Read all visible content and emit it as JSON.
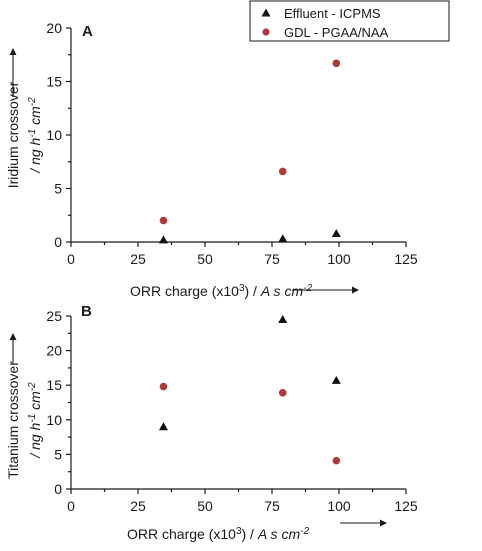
{
  "chart_data": [
    {
      "type": "scatter",
      "panel_label": "A",
      "xlabel_parts": {
        "main": "ORR charge (x10",
        "sup": "3",
        "close": ") / ",
        "unit": "A s cm",
        "unit_sup": "-2"
      },
      "ylabel_line1": "Iridium crossover",
      "ylabel_line2_parts": {
        "a": "/ ng h",
        "a_sup": "-1",
        "b": " cm",
        "b_sup": "-2"
      },
      "xlim": [
        0,
        125
      ],
      "ylim": [
        0,
        20
      ],
      "x_ticks": [
        "0",
        "25",
        "50",
        "75",
        "100",
        "125"
      ],
      "y_ticks": [
        "0",
        "5",
        "10",
        "15",
        "20"
      ],
      "legend": {
        "placement": "top-right",
        "entries": [
          {
            "name": "Effluent - ICPMS",
            "marker": "triangle",
            "color": "#111111"
          },
          {
            "name": "GDL - PGAA/NAA",
            "marker": "circle",
            "color": "#b03a3a"
          }
        ]
      },
      "series": [
        {
          "name": "Effluent - ICPMS",
          "marker": "triangle",
          "color": "#111111",
          "points": [
            {
              "x": 34.5,
              "y": 0.2
            },
            {
              "x": 79,
              "y": 0.3
            },
            {
              "x": 99,
              "y": 0.8
            }
          ]
        },
        {
          "name": "GDL - PGAA/NAA",
          "marker": "circle",
          "color": "#b03a3a",
          "points": [
            {
              "x": 34.5,
              "y": 2.0
            },
            {
              "x": 79,
              "y": 6.6
            },
            {
              "x": 99,
              "y": 16.7
            }
          ]
        }
      ]
    },
    {
      "type": "scatter",
      "panel_label": "B",
      "xlabel_parts": {
        "main": "ORR charge (x10",
        "sup": "3",
        "close": ") / ",
        "unit": "A s cm",
        "unit_sup": "-2"
      },
      "ylabel_line1": "Titanium crossover",
      "ylabel_line2_parts": {
        "a": "/ ng h",
        "a_sup": "-1",
        "b": " cm",
        "b_sup": "-2"
      },
      "xlim": [
        0,
        125
      ],
      "ylim": [
        0,
        25
      ],
      "x_ticks": [
        "0",
        "25",
        "50",
        "75",
        "100",
        "125"
      ],
      "y_ticks": [
        "0",
        "5",
        "10",
        "15",
        "20",
        "25"
      ],
      "series": [
        {
          "name": "Effluent - ICPMS",
          "marker": "triangle",
          "color": "#111111",
          "points": [
            {
              "x": 34.5,
              "y": 9.0
            },
            {
              "x": 79,
              "y": 24.5
            },
            {
              "x": 99,
              "y": 15.7
            }
          ]
        },
        {
          "name": "GDL - PGAA/NAA",
          "marker": "circle",
          "color": "#b03a3a",
          "points": [
            {
              "x": 34.5,
              "y": 14.8
            },
            {
              "x": 79,
              "y": 13.9
            },
            {
              "x": 99,
              "y": 4.1
            }
          ]
        }
      ]
    }
  ]
}
